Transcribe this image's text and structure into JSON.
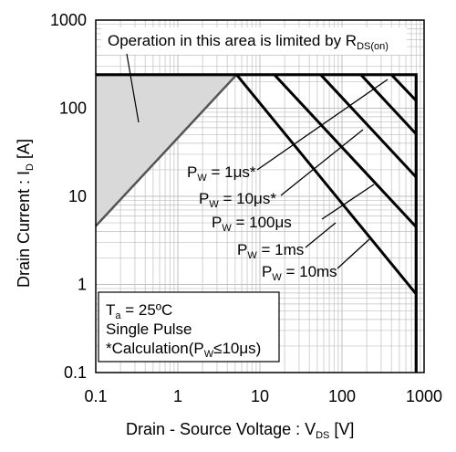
{
  "chart_data": {
    "type": "line",
    "title": "",
    "xlabel": "Drain - Source Voltage : V",
    "xlabel_sub": "DS",
    "xlabel_unit": " [V]",
    "ylabel": "Drain Current : I",
    "ylabel_sub": "D",
    "ylabel_unit": " [A]",
    "xscale": "log",
    "yscale": "log",
    "xlim": [
      0.1,
      1000
    ],
    "ylim": [
      0.1,
      1000
    ],
    "x_ticks": [
      "0.1",
      "1",
      "10",
      "100",
      "1000"
    ],
    "y_ticks": [
      "0.1",
      "1",
      "10",
      "100",
      "1000"
    ],
    "grid": true,
    "rds_region": {
      "label": "Operation in this area is limited by R",
      "label_sub": "DS(on)",
      "polygon": [
        [
          0.1,
          4.6
        ],
        [
          0.1,
          240
        ],
        [
          2.5,
          240
        ],
        [
          5.2,
          240
        ]
      ]
    },
    "current_limit": 240,
    "voltage_limit": 800,
    "rds_line": [
      [
        0.1,
        4.6
      ],
      [
        5.2,
        240
      ]
    ],
    "series": [
      {
        "name": "PW = 1μs*",
        "label_main": "P",
        "label_sub": "W",
        "label_rest": " = 1μs*",
        "points": [
          [
            400,
            240
          ],
          [
            800,
            122
          ]
        ]
      },
      {
        "name": "PW = 10μs*",
        "label_main": "P",
        "label_sub": "W",
        "label_rest": " = 10μs*",
        "points": [
          [
            170,
            240
          ],
          [
            800,
            51
          ]
        ]
      },
      {
        "name": "PW = 100μs",
        "label_main": "P",
        "label_sub": "W",
        "label_rest": " = 100μs",
        "points": [
          [
            55,
            240
          ],
          [
            800,
            16.5
          ]
        ]
      },
      {
        "name": "PW = 1ms",
        "label_main": "P",
        "label_sub": "W",
        "label_rest": " = 1ms",
        "points": [
          [
            15,
            240
          ],
          [
            800,
            4.5
          ]
        ]
      },
      {
        "name": "PW = 10ms",
        "label_main": "P",
        "label_sub": "W",
        "label_rest": " = 10ms",
        "points": [
          [
            5.2,
            240
          ],
          [
            800,
            0.78
          ]
        ]
      }
    ],
    "conditions": {
      "line1_main": "T",
      "line1_sub": "a",
      "line1_rest": " = 25ºC",
      "line2": "Single Pulse",
      "line3_main": "*Calculation(P",
      "line3_sub": "W",
      "line3_rest": "≤10μs)"
    },
    "colors": {
      "region_fill": "#d9d9d9",
      "rds_line": "#555555",
      "curve": "#000000",
      "grid": "#bfbfbf"
    }
  }
}
